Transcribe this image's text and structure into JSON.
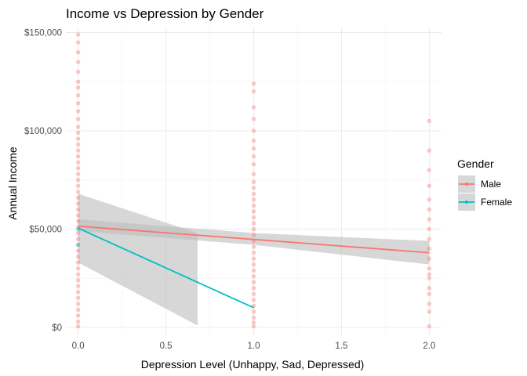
{
  "chart_data": {
    "type": "scatter",
    "title": "Income vs Depression by Gender",
    "xlabel": "Depression Level (Unhappy, Sad, Depressed)",
    "ylabel": "Annual Income",
    "xlim": [
      -0.07,
      2.07
    ],
    "ylim": [
      -4000,
      153000
    ],
    "x_ticks": [
      0,
      0.5,
      1,
      1.5,
      2
    ],
    "x_tick_labels": [
      "0.0",
      "0.5",
      "1.0",
      "1.5",
      "2.0"
    ],
    "y_ticks": [
      0,
      50000,
      100000,
      150000
    ],
    "y_tick_labels": [
      "$0",
      "$50,000",
      "$100,000",
      "$150,000"
    ],
    "grid": true,
    "legend": {
      "title": "Gender",
      "position": "right"
    },
    "series": [
      {
        "name": "Male",
        "color": "#F8766D",
        "points": [
          {
            "x": 0,
            "y": 149000
          },
          {
            "x": 0,
            "y": 145000
          },
          {
            "x": 0,
            "y": 140000
          },
          {
            "x": 0,
            "y": 135000
          },
          {
            "x": 0,
            "y": 130000
          },
          {
            "x": 0,
            "y": 125000
          },
          {
            "x": 0,
            "y": 122000
          },
          {
            "x": 0,
            "y": 118000
          },
          {
            "x": 0,
            "y": 114000
          },
          {
            "x": 0,
            "y": 110000
          },
          {
            "x": 0,
            "y": 106000
          },
          {
            "x": 0,
            "y": 102000
          },
          {
            "x": 0,
            "y": 99000
          },
          {
            "x": 0,
            "y": 96000
          },
          {
            "x": 0,
            "y": 93000
          },
          {
            "x": 0,
            "y": 90000
          },
          {
            "x": 0,
            "y": 87000
          },
          {
            "x": 0,
            "y": 84000
          },
          {
            "x": 0,
            "y": 81000
          },
          {
            "x": 0,
            "y": 78000
          },
          {
            "x": 0,
            "y": 75000
          },
          {
            "x": 0,
            "y": 72000
          },
          {
            "x": 0,
            "y": 69000
          },
          {
            "x": 0,
            "y": 66000
          },
          {
            "x": 0,
            "y": 63000
          },
          {
            "x": 0,
            "y": 60000
          },
          {
            "x": 0,
            "y": 57000
          },
          {
            "x": 0,
            "y": 54000
          },
          {
            "x": 0,
            "y": 51000
          },
          {
            "x": 0,
            "y": 48000
          },
          {
            "x": 0,
            "y": 45000
          },
          {
            "x": 0,
            "y": 42000
          },
          {
            "x": 0,
            "y": 39000
          },
          {
            "x": 0,
            "y": 36000
          },
          {
            "x": 0,
            "y": 33000
          },
          {
            "x": 0,
            "y": 30000
          },
          {
            "x": 0,
            "y": 27000
          },
          {
            "x": 0,
            "y": 24000
          },
          {
            "x": 0,
            "y": 21000
          },
          {
            "x": 0,
            "y": 18000
          },
          {
            "x": 0,
            "y": 15000
          },
          {
            "x": 0,
            "y": 12000
          },
          {
            "x": 0,
            "y": 9000
          },
          {
            "x": 0,
            "y": 6000
          },
          {
            "x": 0,
            "y": 3000
          },
          {
            "x": 0,
            "y": 500
          },
          {
            "x": 1,
            "y": 124000
          },
          {
            "x": 1,
            "y": 120000
          },
          {
            "x": 1,
            "y": 112000
          },
          {
            "x": 1,
            "y": 106000
          },
          {
            "x": 1,
            "y": 100000
          },
          {
            "x": 1,
            "y": 95000
          },
          {
            "x": 1,
            "y": 91000
          },
          {
            "x": 1,
            "y": 87000
          },
          {
            "x": 1,
            "y": 83000
          },
          {
            "x": 1,
            "y": 78000
          },
          {
            "x": 1,
            "y": 74000
          },
          {
            "x": 1,
            "y": 71000
          },
          {
            "x": 1,
            "y": 68000
          },
          {
            "x": 1,
            "y": 65000
          },
          {
            "x": 1,
            "y": 62000
          },
          {
            "x": 1,
            "y": 59000
          },
          {
            "x": 1,
            "y": 56000
          },
          {
            "x": 1,
            "y": 53000
          },
          {
            "x": 1,
            "y": 50000
          },
          {
            "x": 1,
            "y": 47000
          },
          {
            "x": 1,
            "y": 44000
          },
          {
            "x": 1,
            "y": 41000
          },
          {
            "x": 1,
            "y": 38000
          },
          {
            "x": 1,
            "y": 35000
          },
          {
            "x": 1,
            "y": 32000
          },
          {
            "x": 1,
            "y": 29000
          },
          {
            "x": 1,
            "y": 26000
          },
          {
            "x": 1,
            "y": 23000
          },
          {
            "x": 1,
            "y": 20000
          },
          {
            "x": 1,
            "y": 17000
          },
          {
            "x": 1,
            "y": 14000
          },
          {
            "x": 1,
            "y": 11000
          },
          {
            "x": 1,
            "y": 8000
          },
          {
            "x": 1,
            "y": 5000
          },
          {
            "x": 1,
            "y": 2500
          },
          {
            "x": 1,
            "y": 500
          },
          {
            "x": 2,
            "y": 105000
          },
          {
            "x": 2,
            "y": 90000
          },
          {
            "x": 2,
            "y": 80000
          },
          {
            "x": 2,
            "y": 72000
          },
          {
            "x": 2,
            "y": 65000
          },
          {
            "x": 2,
            "y": 60000
          },
          {
            "x": 2,
            "y": 55000
          },
          {
            "x": 2,
            "y": 50000
          },
          {
            "x": 2,
            "y": 45000
          },
          {
            "x": 2,
            "y": 40000
          },
          {
            "x": 2,
            "y": 35000
          },
          {
            "x": 2,
            "y": 30000
          },
          {
            "x": 2,
            "y": 27000
          },
          {
            "x": 2,
            "y": 25000
          },
          {
            "x": 2,
            "y": 20000
          },
          {
            "x": 2,
            "y": 17000
          },
          {
            "x": 2,
            "y": 12000
          },
          {
            "x": 2,
            "y": 8000
          },
          {
            "x": 2,
            "y": 500
          }
        ],
        "fit": {
          "line": [
            {
              "x": 0,
              "y": 51500
            },
            {
              "x": 2,
              "y": 38000
            }
          ],
          "ci": [
            {
              "x": 0,
              "lower": 49000,
              "upper": 55000
            },
            {
              "x": 1,
              "lower": 42000,
              "upper": 48000
            },
            {
              "x": 2,
              "lower": 32000,
              "upper": 44000
            }
          ]
        }
      },
      {
        "name": "Female",
        "color": "#00BFC4",
        "points": [
          {
            "x": 0,
            "y": 42000
          },
          {
            "x": 0,
            "y": 50000
          }
        ],
        "fit": {
          "line": [
            {
              "x": 0,
              "y": 50500
            },
            {
              "x": 1,
              "y": 10000
            }
          ],
          "ci": [
            {
              "x": 0,
              "lower": 33000,
              "upper": 68000
            },
            {
              "x": 0.68,
              "lower": 1000,
              "upper": 48000
            }
          ]
        }
      }
    ],
    "band_color": "#bdbdbd"
  }
}
